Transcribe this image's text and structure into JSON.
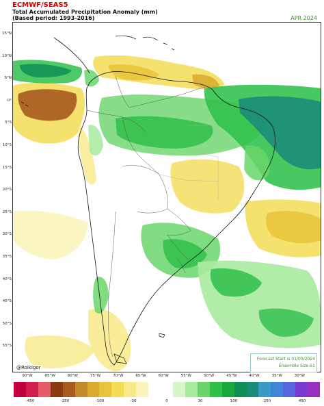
{
  "header": {
    "title": "ECMWF/SEAS5",
    "subtitle": "Total Accumulated Precipitation Anomaly (mm)",
    "period": "(Based period: 1993-2016)",
    "valid_month": "APR 2024"
  },
  "map": {
    "lat_labels": [
      "15°N",
      "10°N",
      "5°N",
      "0°",
      "5°S",
      "10°S",
      "15°S",
      "20°S",
      "25°S",
      "30°S",
      "35°S",
      "40°S",
      "45°S",
      "50°S",
      "55°S"
    ],
    "lon_labels": [
      "90°W",
      "85°W",
      "80°W",
      "75°W",
      "70°W",
      "65°W",
      "60°W",
      "55°W",
      "50°W",
      "45°W",
      "40°W",
      "35°W",
      "30°W"
    ],
    "credit": "@RoikIgor",
    "forecast_start": "Forecast Start is 01/03/2024",
    "ensemble_size": "Ensemble Size:51"
  },
  "colorbar": {
    "colors": [
      "#c2003c",
      "#d11f4f",
      "#e55c6a",
      "#8b3a12",
      "#a65a1e",
      "#c48a2a",
      "#d8aa2e",
      "#e8c43a",
      "#f3dc55",
      "#f8ea88",
      "#fbf3bd",
      "#ffffff",
      "#ffffff",
      "#d8f5c8",
      "#a8eaa0",
      "#6ad66a",
      "#2fc04a",
      "#18a840",
      "#0f8f55",
      "#1a8a7a",
      "#3b9bc7",
      "#3f86d8",
      "#5566dd",
      "#7a3ad0",
      "#9b2fc0"
    ],
    "tick_labels": [
      "-450",
      "-250",
      "-100",
      "-30",
      "0",
      "30",
      "100",
      "250",
      "450"
    ]
  },
  "palette": {
    "dry_strong": "#a65a1e",
    "dry": "#e8c43a",
    "dry_light": "#f8ea88",
    "wet_light": "#a8eaa0",
    "wet": "#2fc04a",
    "wet_strong": "#1a8a7a",
    "coast": "#111111",
    "border": "#555555"
  }
}
